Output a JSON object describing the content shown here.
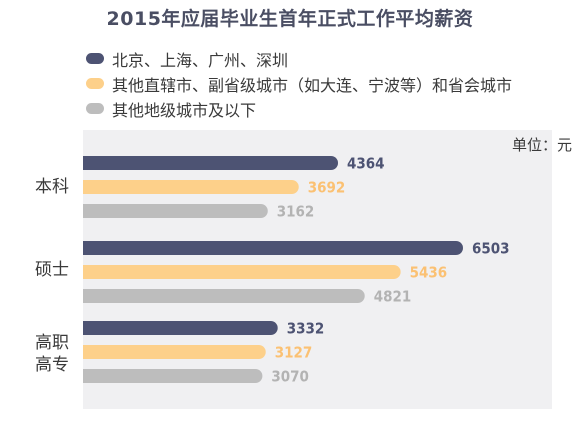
{
  "chart_data": {
    "type": "bar",
    "orientation": "horizontal",
    "title": "2015年应届毕业生首年正式工作平均薪资",
    "unit_label": "单位：元",
    "categories": [
      {
        "name": "本科",
        "lines": [
          "本科"
        ]
      },
      {
        "name": "硕士",
        "lines": [
          "硕士"
        ]
      },
      {
        "name": "高职高专",
        "lines": [
          "高职",
          "高专"
        ]
      }
    ],
    "series": [
      {
        "name": "北京、上海、广州、深圳",
        "color": "#4d5373",
        "value_color": "#4d5373",
        "values": [
          4364,
          6503,
          3332
        ]
      },
      {
        "name": "其他直辖市、副省级城市（如大连、宁波等）和省会城市",
        "color": "#fdd08a",
        "value_color": "#fbc173",
        "values": [
          3692,
          5436,
          3127
        ]
      },
      {
        "name": "其他地级城市及以下",
        "color": "#bdbdbd",
        "value_color": "#b3b3b3",
        "values": [
          3162,
          4821,
          3070
        ]
      }
    ],
    "xlim": [
      0,
      7000
    ],
    "grid": false,
    "legend_position": "top-left"
  }
}
